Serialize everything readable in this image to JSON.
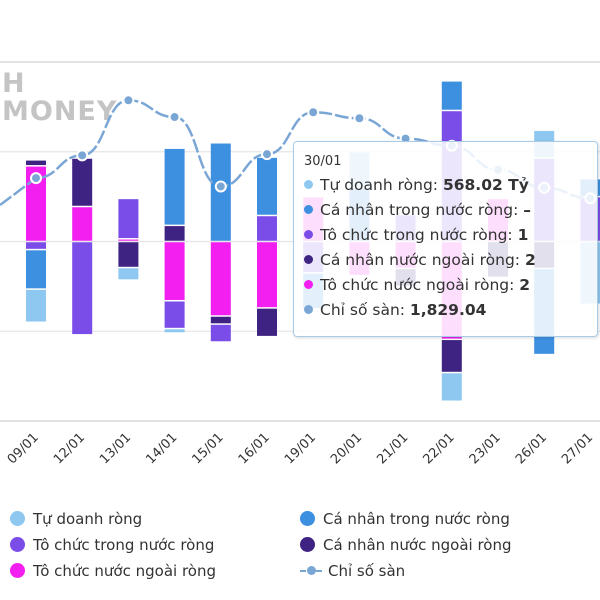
{
  "logo": {
    "lines": [
      "H",
      "MONEY"
    ]
  },
  "chart_data": {
    "type": "bar",
    "stacked": true,
    "categories": [
      "09/01",
      "12/01",
      "13/01",
      "14/01",
      "15/01",
      "16/01",
      "19/01",
      "20/01",
      "21/01",
      "22/01",
      "23/01",
      "26/01",
      "27/01"
    ],
    "ylim": [
      -2000,
      2000
    ],
    "y_unit": "Tỷ",
    "grid": true,
    "series": [
      {
        "name": "Tự doanh ròng",
        "color": "#8ec8f0",
        "values": [
          -370,
          0,
          -140,
          -50,
          0,
          0,
          0,
          400,
          0,
          -320,
          0,
          310,
          -700
        ]
      },
      {
        "name": "Cá nhân trong nước ròng",
        "color": "#3d8fe0",
        "values": [
          -440,
          0,
          0,
          860,
          1100,
          650,
          -400,
          600,
          0,
          330,
          0,
          -960,
          200
        ]
      },
      {
        "name": "Tô chức trong nước ròng",
        "color": "#7b4de8",
        "values": [
          -90,
          -1040,
          450,
          -310,
          -200,
          290,
          -350,
          0,
          300,
          1460,
          0,
          930,
          500
        ]
      },
      {
        "name": "Cá nhân nước ngoài ròng",
        "color": "#3e2382",
        "values": [
          67,
          540,
          -290,
          180,
          -90,
          -320,
          0,
          0,
          -200,
          -370,
          -400,
          -300,
          0
        ]
      },
      {
        "name": "Tô chức nước ngoài ròng",
        "color": "#f21ff0",
        "values": [
          843,
          390,
          30,
          -660,
          -830,
          -740,
          500,
          -380,
          -300,
          -1090,
          480,
          0,
          0
        ]
      }
    ],
    "line_series": {
      "name": "Chỉ số sàn",
      "color": "#7aa6d6",
      "ylim": [
        1600,
        1900
      ],
      "values": [
        1803,
        1822,
        1868,
        1854,
        1796,
        1823,
        1858,
        1853,
        1836,
        1830,
        1810,
        1795,
        1786
      ]
    },
    "legend": {
      "placement": "bottom"
    }
  },
  "legend_items": [
    {
      "label": "Tự doanh ròng",
      "color": "#8ec8f0",
      "type": "dot"
    },
    {
      "label": "Cá nhân trong nước ròng",
      "color": "#3d8fe0",
      "type": "dot"
    },
    {
      "label": "Tô chức trong nước ròng",
      "color": "#7b4de8",
      "type": "dot"
    },
    {
      "label": "Cá nhân nước ngoài ròng",
      "color": "#3e2382",
      "type": "dot"
    },
    {
      "label": "Tô chức nước ngoài ròng",
      "color": "#f21ff0",
      "type": "dot"
    },
    {
      "label": "Chỉ số sàn",
      "color": "#7aa6d6",
      "type": "line"
    }
  ],
  "tooltip": {
    "title": "30/01",
    "rows": [
      {
        "label": "Tự doanh ròng: ",
        "value": "568.02 Tỷ",
        "color": "#8ec8f0"
      },
      {
        "label": "Cá nhân trong nước ròng: ",
        "value": "–",
        "color": "#3d8fe0"
      },
      {
        "label": "Tô chức trong nước ròng: ",
        "value": "1",
        "color": "#7b4de8"
      },
      {
        "label": "Cá nhân nước ngoài ròng: ",
        "value": "2",
        "color": "#3e2382"
      },
      {
        "label": "Tô chức nước ngoài ròng: ",
        "value": "2",
        "color": "#f21ff0"
      },
      {
        "label": "Chỉ số sàn: ",
        "value": "1,829.04",
        "color": "#7aa6d6"
      }
    ]
  }
}
